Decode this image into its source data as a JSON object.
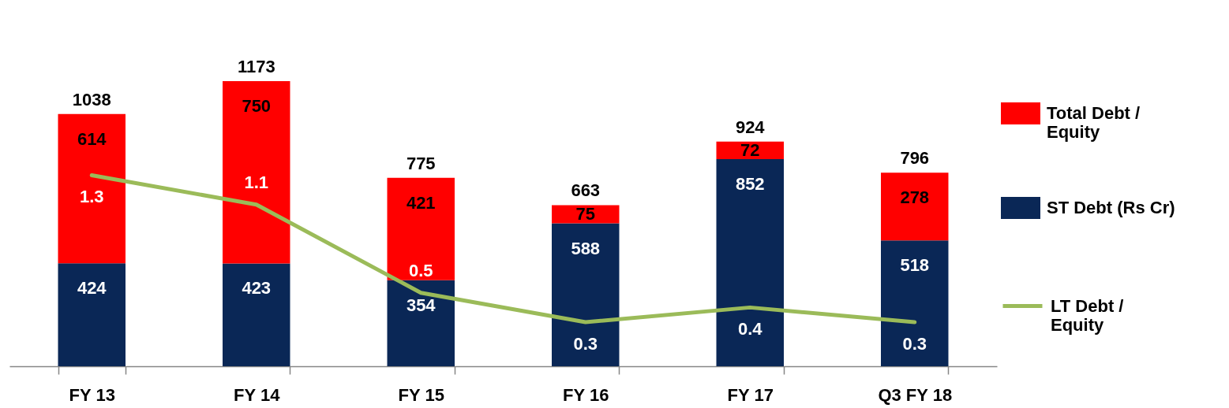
{
  "chart_data": {
    "type": "bar",
    "stacked": true,
    "categories": [
      "FY 13",
      "FY 14",
      "FY 15",
      "FY 16",
      "FY 17",
      "Q3 FY 18"
    ],
    "series": [
      {
        "name": "ST Debt (Rs Cr)",
        "color": "#0a2756",
        "values": [
          424,
          423,
          354,
          588,
          852,
          518
        ]
      },
      {
        "name": "Total Debt / Equity",
        "color": "#ff0000",
        "values": [
          614,
          750,
          421,
          75,
          72,
          278
        ]
      },
      {
        "name": "LT Debt / Equity",
        "type": "line",
        "axis": "y2",
        "color": "#9bbb59",
        "values": [
          1.3,
          1.1,
          0.5,
          0.3,
          0.4,
          0.3
        ]
      }
    ],
    "totals": [
      "1038",
      "1173",
      "775",
      "663",
      "924",
      "796"
    ],
    "data_labels": true,
    "tick_labels": "x",
    "legend": "right"
  }
}
